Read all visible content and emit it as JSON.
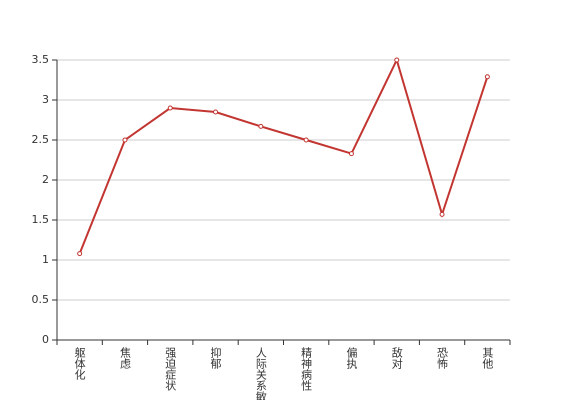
{
  "chart_data": {
    "type": "line",
    "categories": [
      "躯体化",
      "焦虑",
      "强迫症状",
      "抑郁",
      "人际关系敏感",
      "精神病性",
      "偏执",
      "敌对",
      "恐怖",
      "其他"
    ],
    "series": [
      {
        "color": "#c23531",
        "values": [
          1.08,
          2.5,
          2.9,
          2.85,
          2.67,
          2.5,
          2.33,
          3.5,
          1.57,
          3.29
        ]
      }
    ],
    "ylim": [
      0,
      3.5
    ],
    "yticks": [
      0,
      0.5,
      1,
      1.5,
      2,
      2.5,
      3,
      3.5
    ],
    "grid": true
  }
}
